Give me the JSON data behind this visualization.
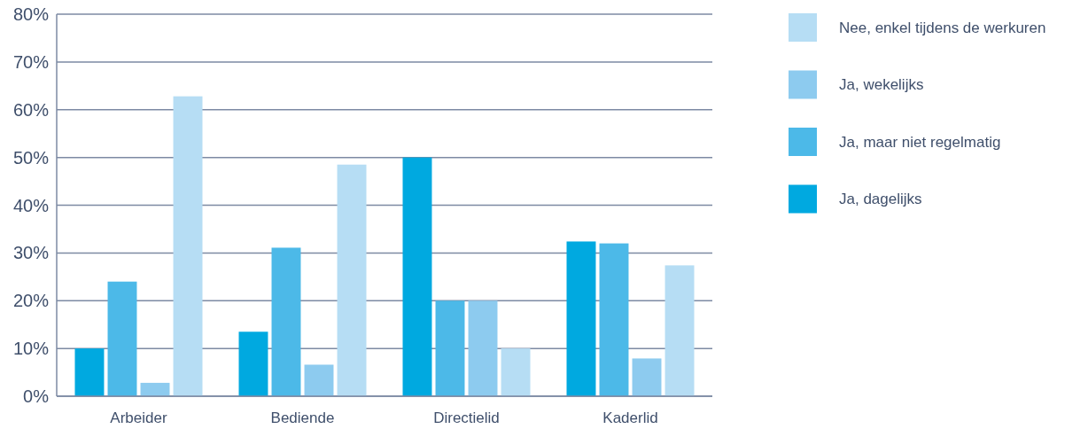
{
  "chart_data": {
    "type": "bar",
    "categories": [
      "Arbeider",
      "Bediende",
      "Directielid",
      "Kaderlid"
    ],
    "series": [
      {
        "name": "Ja, dagelijks",
        "color": "#00a9e0",
        "values": [
          10,
          13.5,
          50,
          32.4
        ]
      },
      {
        "name": "Ja, maar niet regelmatig",
        "color": "#4cb9e8",
        "values": [
          24,
          31.1,
          20,
          32
        ]
      },
      {
        "name": "Ja, wekelijks",
        "color": "#8dcbef",
        "values": [
          2.8,
          6.6,
          20,
          7.9
        ]
      },
      {
        "name": "Nee, enkel tijdens de werkuren",
        "color": "#b6ddf4",
        "values": [
          62.8,
          48.5,
          10,
          27.4
        ]
      }
    ],
    "ylim": [
      0,
      80
    ],
    "yticks": [
      {
        "value": 0,
        "label": "0%"
      },
      {
        "value": 10,
        "label": "10%"
      },
      {
        "value": 20,
        "label": "20%"
      },
      {
        "value": 30,
        "label": "30%"
      },
      {
        "value": 40,
        "label": "40%"
      },
      {
        "value": 50,
        "label": "50%"
      },
      {
        "value": 60,
        "label": "60%"
      },
      {
        "value": 70,
        "label": "70%"
      },
      {
        "value": 80,
        "label": "80%"
      }
    ],
    "grid": "y",
    "legend": "right"
  }
}
